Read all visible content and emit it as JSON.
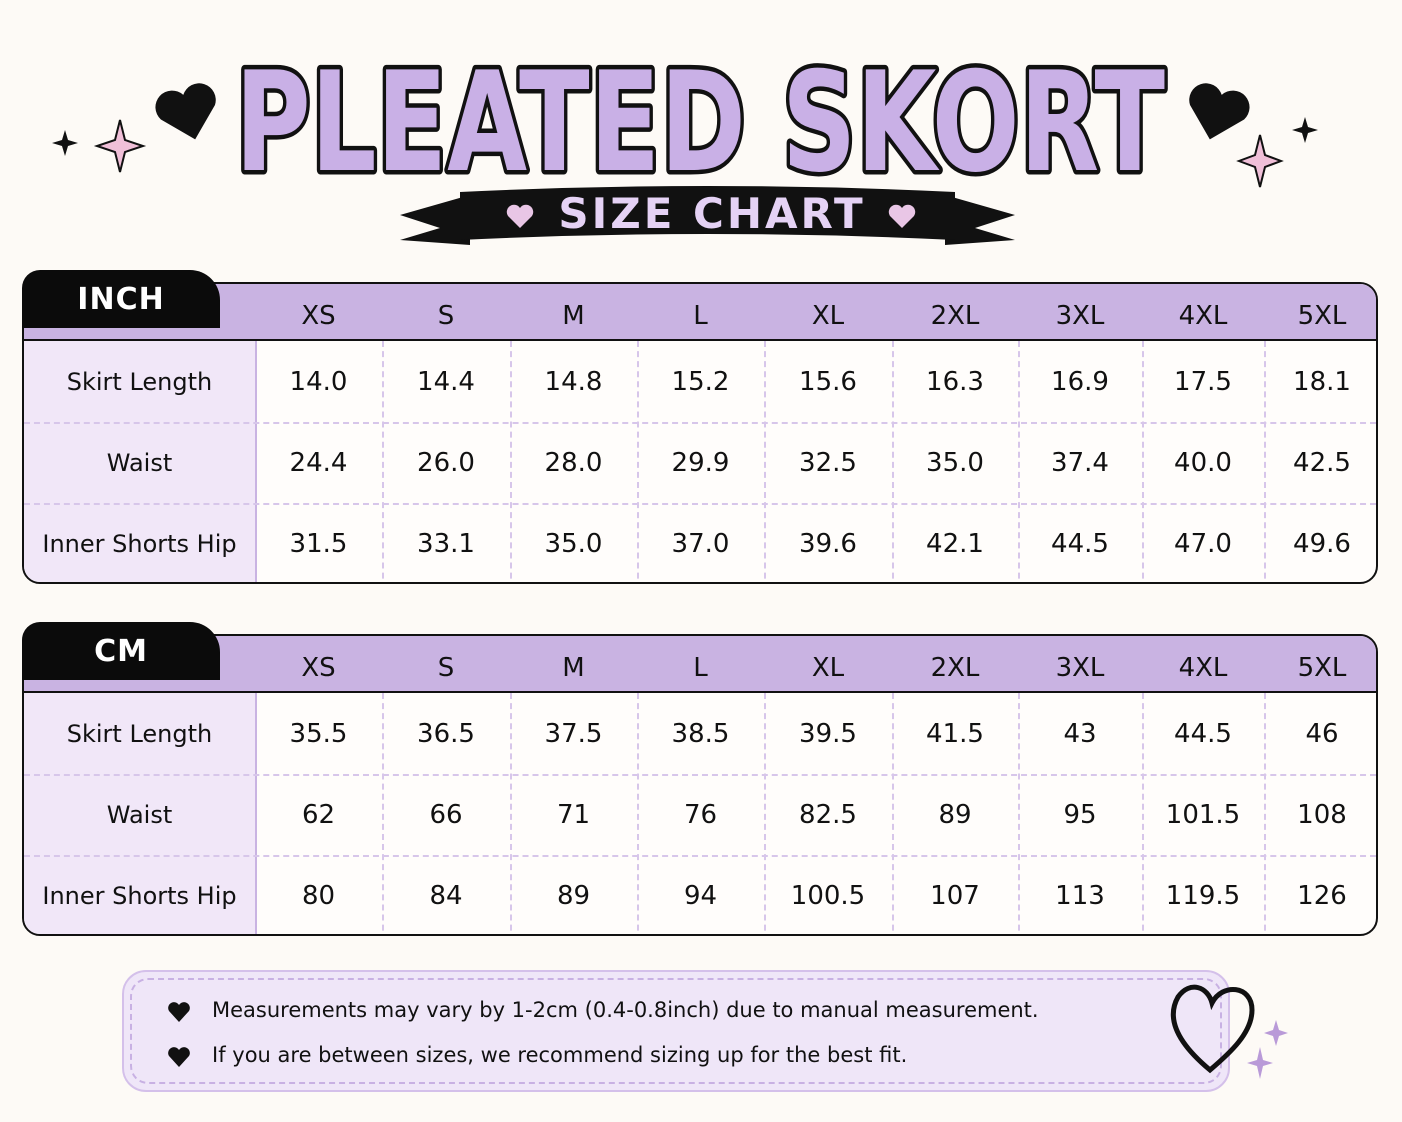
{
  "header": {
    "title": "PLEATED SKORT",
    "subtitle": "SIZE CHART"
  },
  "tables": [
    {
      "unit": "INCH",
      "sizes": [
        "XS",
        "S",
        "M",
        "L",
        "XL",
        "2XL",
        "3XL",
        "4XL",
        "5XL"
      ],
      "rows": [
        {
          "label": "Skirt Length",
          "values": [
            "14.0",
            "14.4",
            "14.8",
            "15.2",
            "15.6",
            "16.3",
            "16.9",
            "17.5",
            "18.1"
          ]
        },
        {
          "label": "Waist",
          "values": [
            "24.4",
            "26.0",
            "28.0",
            "29.9",
            "32.5",
            "35.0",
            "37.4",
            "40.0",
            "42.5"
          ]
        },
        {
          "label": "Inner Shorts Hip",
          "values": [
            "31.5",
            "33.1",
            "35.0",
            "37.0",
            "39.6",
            "42.1",
            "44.5",
            "47.0",
            "49.6"
          ]
        }
      ]
    },
    {
      "unit": "CM",
      "sizes": [
        "XS",
        "S",
        "M",
        "L",
        "XL",
        "2XL",
        "3XL",
        "4XL",
        "5XL"
      ],
      "rows": [
        {
          "label": "Skirt Length",
          "values": [
            "35.5",
            "36.5",
            "37.5",
            "38.5",
            "39.5",
            "41.5",
            "43",
            "44.5",
            "46"
          ]
        },
        {
          "label": "Waist",
          "values": [
            "62",
            "66",
            "71",
            "76",
            "82.5",
            "89",
            "95",
            "101.5",
            "108"
          ]
        },
        {
          "label": "Inner Shorts Hip",
          "values": [
            "80",
            "84",
            "89",
            "94",
            "100.5",
            "107",
            "113",
            "119.5",
            "126"
          ]
        }
      ]
    }
  ],
  "notes": [
    "Measurements may vary by 1-2cm (0.4-0.8inch) due to manual measurement.",
    "If you are between sizes, we recommend sizing up for the best fit."
  ]
}
